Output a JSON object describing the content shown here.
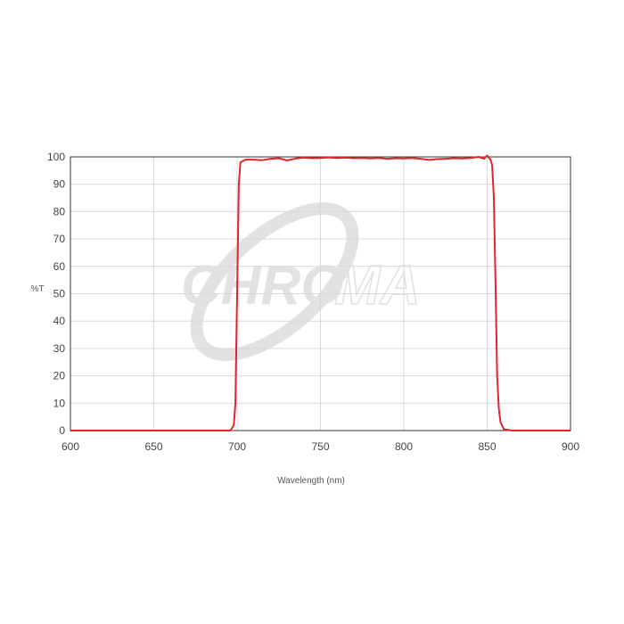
{
  "watermark": {
    "text_fill": "CHRO",
    "text_outline": "MA",
    "color": "#e2e2e2"
  },
  "chart_data": {
    "type": "line",
    "title": "",
    "xlabel": "Wavelength (nm)",
    "ylabel": "%T",
    "xlim": [
      600,
      900
    ],
    "ylim": [
      0,
      100
    ],
    "x_ticks": [
      600,
      650,
      700,
      750,
      800,
      850,
      900
    ],
    "y_ticks": [
      0,
      10,
      20,
      30,
      40,
      50,
      60,
      70,
      80,
      90,
      100
    ],
    "grid": true,
    "legend": "none",
    "line_color": "#e0262b",
    "series": [
      {
        "x": [
          600,
          650,
          696,
          698,
          699,
          700,
          701,
          702,
          705,
          710,
          715,
          720,
          725,
          730,
          735,
          740,
          745,
          750,
          755,
          760,
          765,
          770,
          775,
          780,
          785,
          790,
          795,
          800,
          805,
          810,
          815,
          820,
          825,
          830,
          835,
          840,
          845,
          848,
          850,
          852,
          853,
          854,
          855,
          856,
          857,
          858,
          860,
          865,
          900
        ],
        "y": [
          0,
          0,
          0,
          2,
          10,
          50,
          90,
          98,
          99,
          99,
          98.8,
          99.3,
          99.5,
          98.7,
          99.4,
          99.7,
          99.5,
          99.6,
          99.8,
          99.6,
          99.7,
          99.5,
          99.6,
          99.4,
          99.6,
          99.3,
          99.5,
          99.4,
          99.6,
          99.3,
          98.9,
          99.2,
          99.3,
          99.5,
          99.4,
          99.6,
          100,
          99.3,
          100.5,
          99,
          97,
          85,
          55,
          20,
          8,
          3,
          0.5,
          0,
          0
        ]
      }
    ]
  }
}
